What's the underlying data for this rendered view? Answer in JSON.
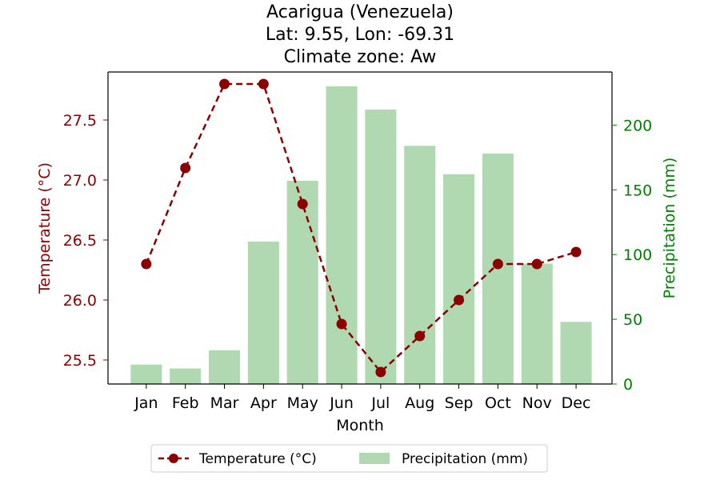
{
  "chart_data": {
    "type": "bar+line",
    "title": [
      "Acarigua (Venezuela)",
      "Lat: 9.55, Lon: -69.31",
      "Climate zone: Aw"
    ],
    "xlabel": "Month",
    "categories": [
      "Jan",
      "Feb",
      "Mar",
      "Apr",
      "May",
      "Jun",
      "Jul",
      "Aug",
      "Sep",
      "Oct",
      "Nov",
      "Dec"
    ],
    "temperature": {
      "name": "Temperature (°C)",
      "axis_label": "Temperature (°C)",
      "values": [
        26.3,
        27.1,
        27.8,
        27.8,
        26.8,
        25.8,
        25.4,
        25.7,
        26.0,
        26.3,
        26.3,
        26.4
      ],
      "ylim": [
        25.3,
        27.9
      ],
      "ticks": [
        25.5,
        26.0,
        26.5,
        27.0,
        27.5
      ],
      "tick_labels": [
        "25.5",
        "26.0",
        "26.5",
        "27.0",
        "27.5"
      ],
      "color": "#8b0000",
      "axis_color": "#8b0000"
    },
    "precipitation": {
      "name": "Precipitation (mm)",
      "axis_label": "Precipitation (mm)",
      "values": [
        15,
        12,
        26,
        110,
        157,
        230,
        212,
        184,
        162,
        178,
        93,
        48
      ],
      "ylim": [
        0,
        241
      ],
      "ticks": [
        0,
        50,
        100,
        150,
        200
      ],
      "tick_labels": [
        "0",
        "50",
        "100",
        "150",
        "200"
      ],
      "color": "#b1d9b1",
      "axis_color": "#008000"
    },
    "legend": {
      "placement": "bottom-center",
      "entries": [
        "Temperature (°C)",
        "Precipitation (mm)"
      ]
    },
    "grid": false
  }
}
